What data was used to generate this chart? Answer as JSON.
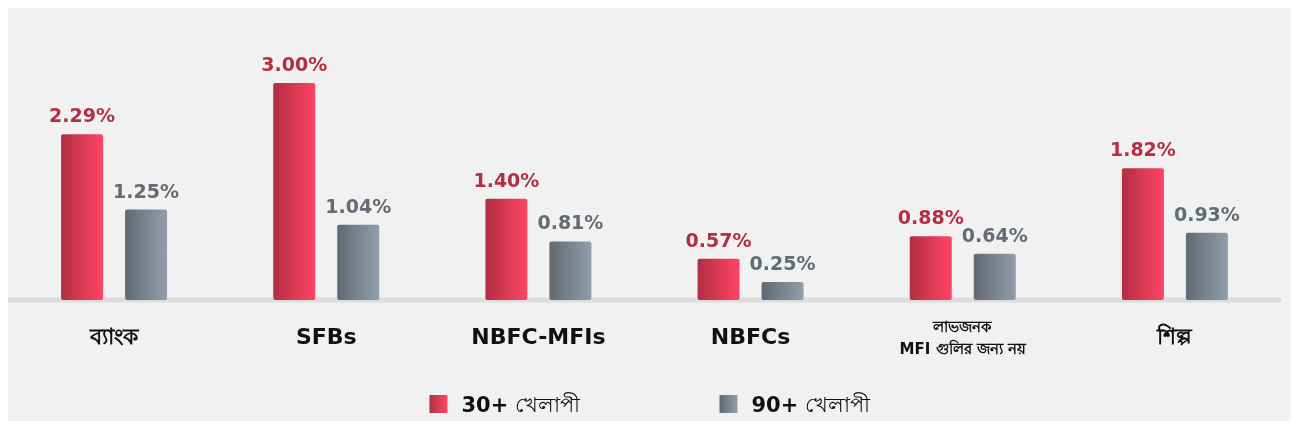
{
  "chart_data": {
    "type": "bar",
    "categories": [
      "ব্যাংক",
      "SFBs",
      "NBFC-MFIs",
      "NBFCs",
      "লাভজনক\nMFI গুলির জন্য নয়",
      "শিল্প"
    ],
    "series": [
      {
        "name": "30+ খেলাপী",
        "color": "#c8344c",
        "values": [
          2.29,
          3.0,
          1.4,
          0.57,
          0.88,
          1.82
        ],
        "value_labels": [
          "2.29%",
          "3.00%",
          "1.40%",
          "0.57%",
          "0.88%",
          "1.82%"
        ]
      },
      {
        "name": "90+ খেলাপী",
        "color": "#6e7781",
        "values": [
          1.25,
          1.04,
          0.81,
          0.25,
          0.64,
          0.93
        ],
        "value_labels": [
          "1.25%",
          "1.04%",
          "0.81%",
          "0.25%",
          "0.64%",
          "0.93%"
        ]
      }
    ],
    "legend": "bottom"
  }
}
